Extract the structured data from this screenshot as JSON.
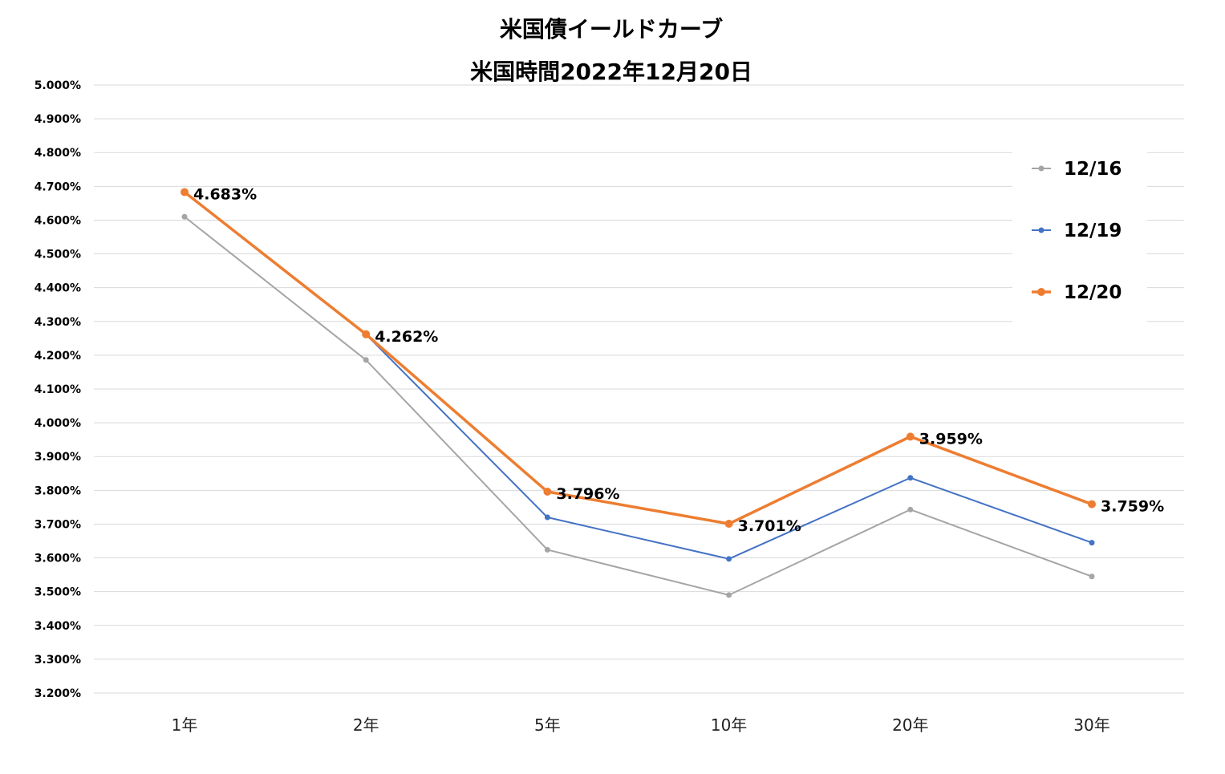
{
  "chart_data": {
    "type": "line",
    "title": "米国債イールドカーブ",
    "subtitle": "米国時間2022年12月20日",
    "categories": [
      "1年",
      "2年",
      "5年",
      "10年",
      "20年",
      "30年"
    ],
    "ylim": [
      3.2,
      5.0
    ],
    "yticks": [
      "3.200%",
      "3.300%",
      "3.400%",
      "3.500%",
      "3.600%",
      "3.700%",
      "3.800%",
      "3.900%",
      "4.000%",
      "4.100%",
      "4.200%",
      "4.300%",
      "4.400%",
      "4.500%",
      "4.600%",
      "4.700%",
      "4.800%",
      "4.900%",
      "5.000%"
    ],
    "grid": true,
    "legend_position": "right",
    "series": [
      {
        "name": "12/16",
        "color": "#a5a5a5",
        "values": [
          4.61,
          4.186,
          3.624,
          3.49,
          3.743,
          3.545
        ],
        "labels": []
      },
      {
        "name": "12/19",
        "color": "#4472c4",
        "values": [
          4.683,
          4.262,
          3.72,
          3.597,
          3.837,
          3.645
        ],
        "labels": []
      },
      {
        "name": "12/20",
        "color": "#ed7d31",
        "values": [
          4.683,
          4.262,
          3.796,
          3.701,
          3.959,
          3.759
        ],
        "labels": [
          "4.683%",
          "4.262%",
          "3.796%",
          "3.701%",
          "3.959%",
          "3.759%"
        ]
      }
    ]
  }
}
